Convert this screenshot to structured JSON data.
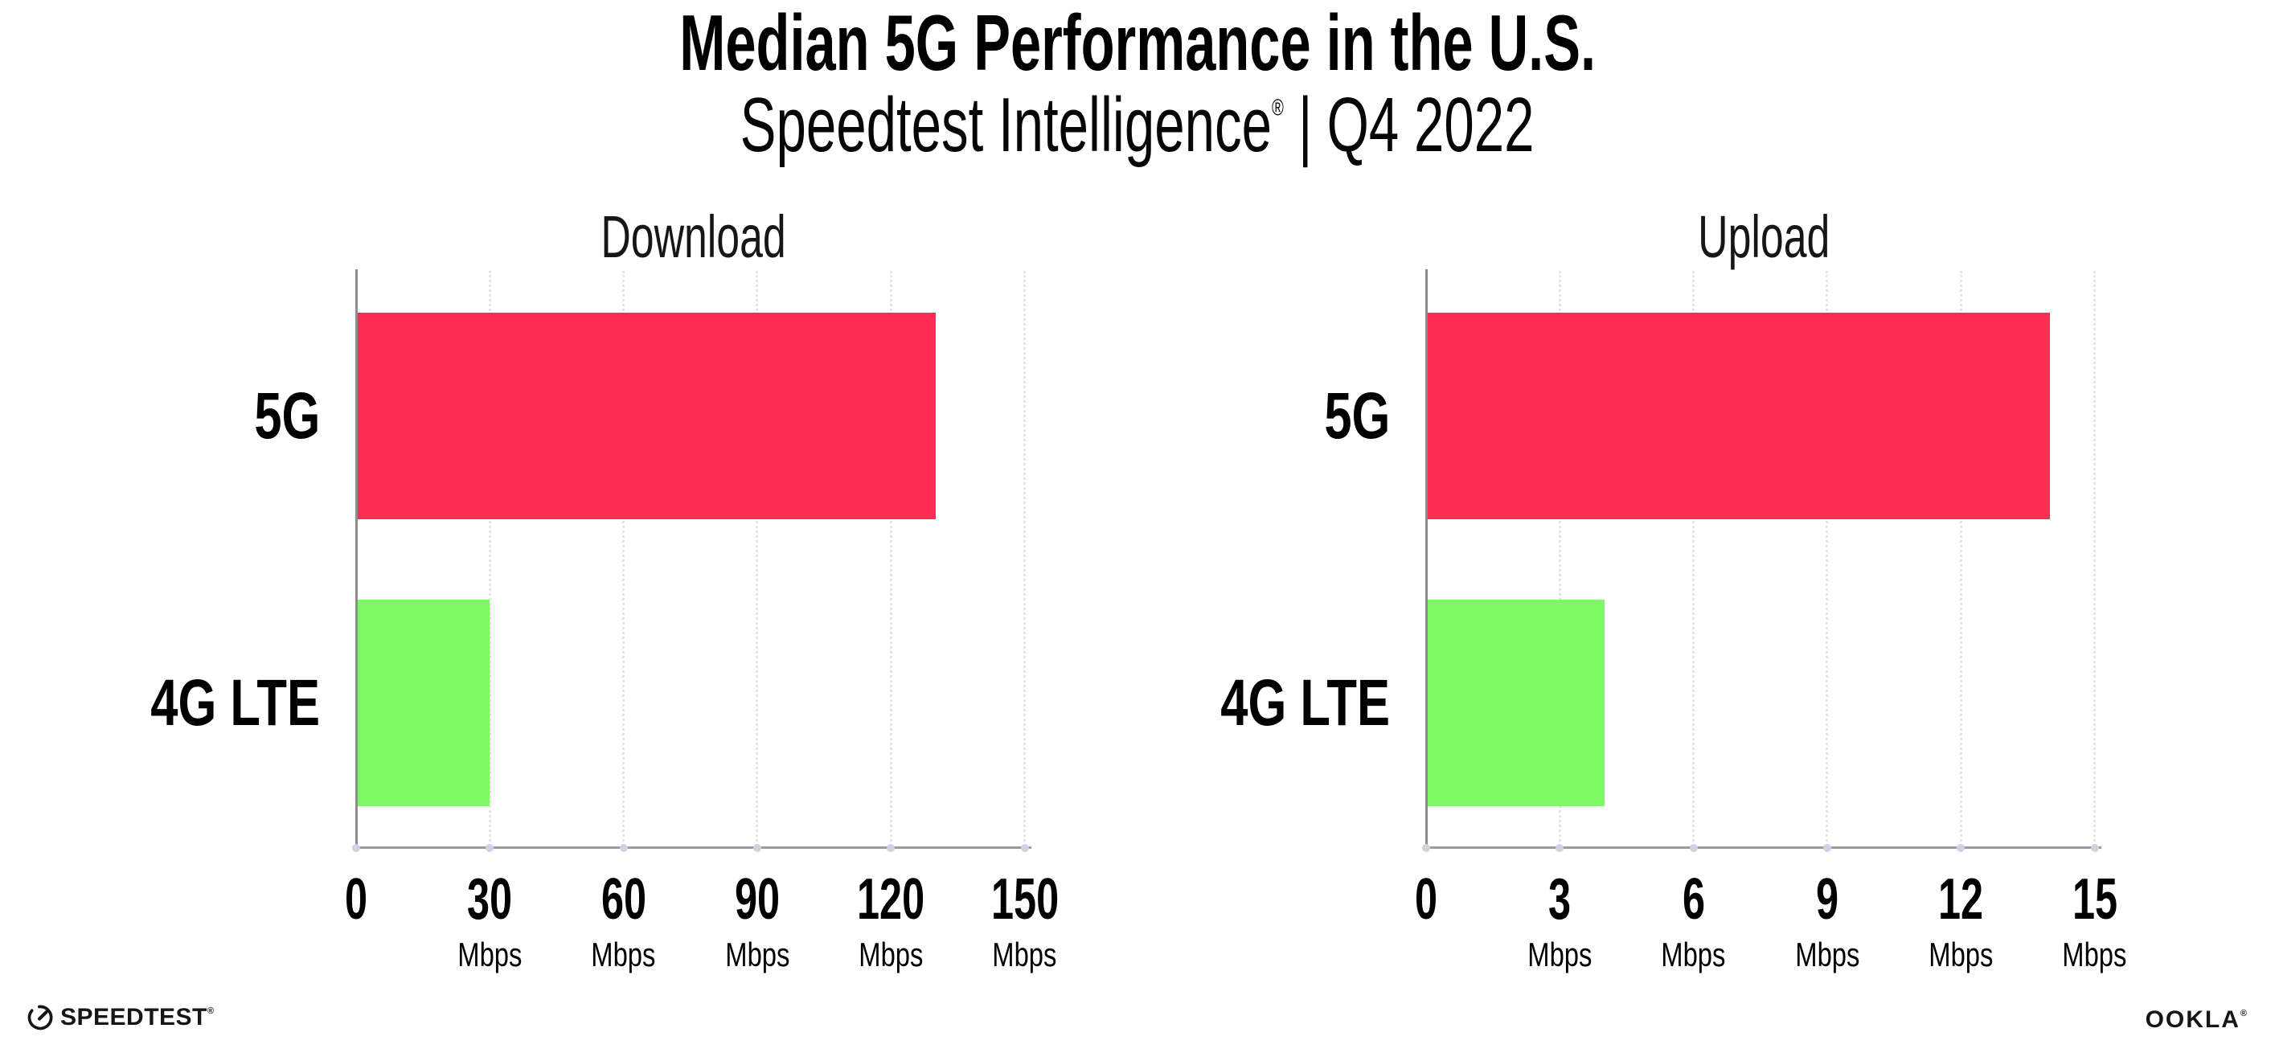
{
  "header": {
    "title": "Median 5G Performance in the U.S.",
    "subtitle_brand": "Speedtest Intelligence",
    "subtitle_reg": "®",
    "subtitle_separator": "|",
    "subtitle_period": "Q4 2022"
  },
  "footer": {
    "speedtest_logo_text": "SPEEDTEST",
    "speedtest_reg": "®",
    "ookla_logo_text": "OOKLA",
    "ookla_reg": "®"
  },
  "colors": {
    "background": "#FFFFFF",
    "bar_5g": "#FE2C55",
    "bar_4g_lte": "#7DFB64",
    "axis": "#8D8D8D",
    "gridline": "#E4E4EA",
    "text": "#000000"
  },
  "chart_data": [
    {
      "type": "bar",
      "orientation": "horizontal",
      "title": "Download",
      "categories": [
        "5G",
        "4G LTE"
      ],
      "values": [
        130,
        30
      ],
      "unit": "Mbps",
      "xlabel": "",
      "ylabel": "",
      "xlim": [
        0,
        150
      ],
      "xticks": [
        0,
        30,
        60,
        90,
        120,
        150
      ],
      "bar_colors": [
        "#FE2C55",
        "#7DFB64"
      ],
      "grid": "vertical-dotted",
      "legend": "none"
    },
    {
      "type": "bar",
      "orientation": "horizontal",
      "title": "Upload",
      "categories": [
        "5G",
        "4G LTE"
      ],
      "values": [
        14,
        4
      ],
      "unit": "Mbps",
      "xlabel": "",
      "ylabel": "",
      "xlim": [
        0,
        15
      ],
      "xticks": [
        0,
        3,
        6,
        9,
        12,
        15
      ],
      "bar_colors": [
        "#FE2C55",
        "#7DFB64"
      ],
      "grid": "vertical-dotted",
      "legend": "none"
    }
  ]
}
